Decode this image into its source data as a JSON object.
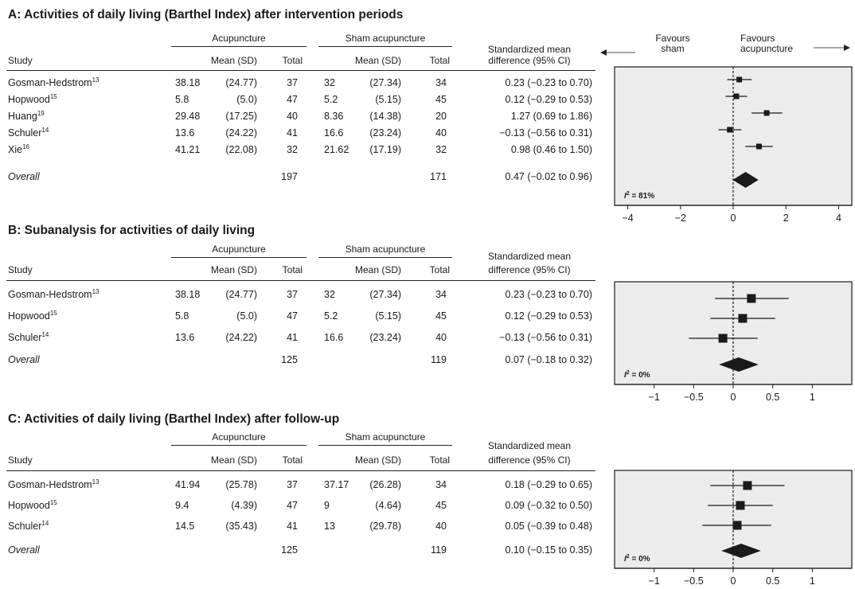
{
  "panels": [
    {
      "title": "A: Activities of daily living (Barthel Index) after intervention periods",
      "headers": {
        "study": "Study",
        "group1": "Acupuncture",
        "group2": "Sham acupuncture",
        "mean_sd": "Mean (SD)",
        "total": "Total",
        "smd_line1": "Standardized mean",
        "smd_line2": "difference (95% CI)"
      },
      "favours": {
        "left": "Favours\nsham",
        "right": "Favours\nacupuncture"
      },
      "rows": [
        {
          "study": "Gosman-Hedstrom",
          "ref": "13",
          "acu_mean": "38.18",
          "acu_sd": "(24.77)",
          "acu_total": "37",
          "sham_mean": "32",
          "sham_sd": "(27.34)",
          "sham_total": "34",
          "smd_text": "0.23 (−0.23 to 0.70)"
        },
        {
          "study": "Hopwood",
          "ref": "15",
          "acu_mean": "5.8",
          "acu_sd": "(5.0)",
          "acu_total": "47",
          "sham_mean": "5.2",
          "sham_sd": "(5.15)",
          "sham_total": "45",
          "smd_text": "0.12 (−0.29 to 0.53)"
        },
        {
          "study": "Huang",
          "ref": "19",
          "acu_mean": "29.48",
          "acu_sd": "(17.25)",
          "acu_total": "40",
          "sham_mean": "8.36",
          "sham_sd": "(14.38)",
          "sham_total": "20",
          "smd_text": "1.27 (0.69 to 1.86)"
        },
        {
          "study": "Schuler",
          "ref": "14",
          "acu_mean": "13.6",
          "acu_sd": "(24.22)",
          "acu_total": "41",
          "sham_mean": "16.6",
          "sham_sd": "(23.24)",
          "sham_total": "40",
          "smd_text": "−0.13 (−0.56 to 0.31)"
        },
        {
          "study": "Xie",
          "ref": "16",
          "acu_mean": "41.21",
          "acu_sd": "(22.08)",
          "acu_total": "32",
          "sham_mean": "21.62",
          "sham_sd": "(17.19)",
          "sham_total": "32",
          "smd_text": "0.98 (0.46 to 1.50)"
        }
      ],
      "overall": {
        "label": "Overall",
        "acu_total": "197",
        "sham_total": "171",
        "smd_text": "0.47 (−0.02 to 0.96)"
      },
      "i2": "81%"
    },
    {
      "title": "B: Subanalysis for activities of daily living",
      "headers": {
        "study": "Study",
        "group1": "Acupuncture",
        "group2": "Sham acupuncture",
        "mean_sd": "Mean (SD)",
        "total": "Total",
        "smd_line1": "Standardized mean",
        "smd_line2": "difference (95% CI)"
      },
      "rows": [
        {
          "study": "Gosman-Hedstrom",
          "ref": "13",
          "acu_mean": "38.18",
          "acu_sd": "(24.77)",
          "acu_total": "37",
          "sham_mean": "32",
          "sham_sd": "(27.34)",
          "sham_total": "34",
          "smd_text": "0.23 (−0.23 to 0.70)"
        },
        {
          "study": "Hopwood",
          "ref": "15",
          "acu_mean": "5.8",
          "acu_sd": "(5.0)",
          "acu_total": "47",
          "sham_mean": "5.2",
          "sham_sd": "(5.15)",
          "sham_total": "45",
          "smd_text": "0.12 (−0.29 to 0.53)"
        },
        {
          "study": "Schuler",
          "ref": "14",
          "acu_mean": "13.6",
          "acu_sd": "(24.22)",
          "acu_total": "41",
          "sham_mean": "16.6",
          "sham_sd": "(23.24)",
          "sham_total": "40",
          "smd_text": "−0.13 (−0.56 to 0.31)"
        }
      ],
      "overall": {
        "label": "Overall",
        "acu_total": "125",
        "sham_total": "119",
        "smd_text": "0.07 (−0.18 to 0.32)"
      },
      "i2": "0%"
    },
    {
      "title": "C: Activities of daily living (Barthel Index) after follow-up",
      "headers": {
        "study": "Study",
        "group1": "Acupuncture",
        "group2": "Sham acupuncture",
        "mean_sd": "Mean (SD)",
        "total": "Total",
        "smd_line1": "Standardized mean",
        "smd_line2": "difference (95% CI)"
      },
      "rows": [
        {
          "study": "Gosman-Hedstrom",
          "ref": "13",
          "acu_mean": "41.94",
          "acu_sd": "(25.78)",
          "acu_total": "37",
          "sham_mean": "37.17",
          "sham_sd": "(26.28)",
          "sham_total": "34",
          "smd_text": "0.18 (−0.29 to 0.65)"
        },
        {
          "study": "Hopwood",
          "ref": "15",
          "acu_mean": "9.4",
          "acu_sd": "(4.39)",
          "acu_total": "47",
          "sham_mean": "9",
          "sham_sd": "(4.64)",
          "sham_total": "45",
          "smd_text": "0.09 (−0.32 to 0.50)"
        },
        {
          "study": "Schuler",
          "ref": "14",
          "acu_mean": "14.5",
          "acu_sd": "(35.43)",
          "acu_total": "41",
          "sham_mean": "13",
          "sham_sd": "(29.78)",
          "sham_total": "40",
          "smd_text": "0.05 (−0.39 to 0.48)"
        }
      ],
      "overall": {
        "label": "Overall",
        "acu_total": "125",
        "sham_total": "119",
        "smd_text": "0.10 (−0.15 to 0.35)"
      },
      "i2": "0%"
    }
  ],
  "colors": {
    "plot_bg": "#ececec",
    "ink": "#1a1a1a"
  },
  "chart_data": [
    {
      "type": "forest",
      "xlim": [
        -4.5,
        4.5
      ],
      "ticks": [
        -4,
        -2,
        0,
        2,
        4
      ],
      "tick_labels": [
        "−4",
        "−2",
        "0",
        "2",
        "4"
      ],
      "points": [
        {
          "est": 0.23,
          "lo": -0.23,
          "hi": 0.7
        },
        {
          "est": 0.12,
          "lo": -0.29,
          "hi": 0.53
        },
        {
          "est": 1.27,
          "lo": 0.69,
          "hi": 1.86
        },
        {
          "est": -0.13,
          "lo": -0.56,
          "hi": 0.31
        },
        {
          "est": 0.98,
          "lo": 0.46,
          "hi": 1.5
        }
      ],
      "pooled": {
        "est": 0.47,
        "lo": -0.02,
        "hi": 0.96
      },
      "marker_scale": 0.5
    },
    {
      "type": "forest",
      "xlim": [
        -1.5,
        1.5
      ],
      "ticks": [
        -1,
        -0.5,
        0,
        0.5,
        1
      ],
      "tick_labels": [
        "−1",
        "−0.5",
        "0",
        "0.5",
        "1"
      ],
      "points": [
        {
          "est": 0.23,
          "lo": -0.23,
          "hi": 0.7
        },
        {
          "est": 0.12,
          "lo": -0.29,
          "hi": 0.53
        },
        {
          "est": -0.13,
          "lo": -0.56,
          "hi": 0.31
        }
      ],
      "pooled": {
        "est": 0.07,
        "lo": -0.18,
        "hi": 0.32
      },
      "marker_scale": 1
    },
    {
      "type": "forest",
      "xlim": [
        -1.5,
        1.5
      ],
      "ticks": [
        -1,
        -0.5,
        0,
        0.5,
        1
      ],
      "tick_labels": [
        "−1",
        "−0.5",
        "0",
        "0.5",
        "1"
      ],
      "points": [
        {
          "est": 0.18,
          "lo": -0.29,
          "hi": 0.65
        },
        {
          "est": 0.09,
          "lo": -0.32,
          "hi": 0.5
        },
        {
          "est": 0.05,
          "lo": -0.39,
          "hi": 0.48
        }
      ],
      "pooled": {
        "est": 0.1,
        "lo": -0.15,
        "hi": 0.35
      },
      "marker_scale": 1
    }
  ]
}
